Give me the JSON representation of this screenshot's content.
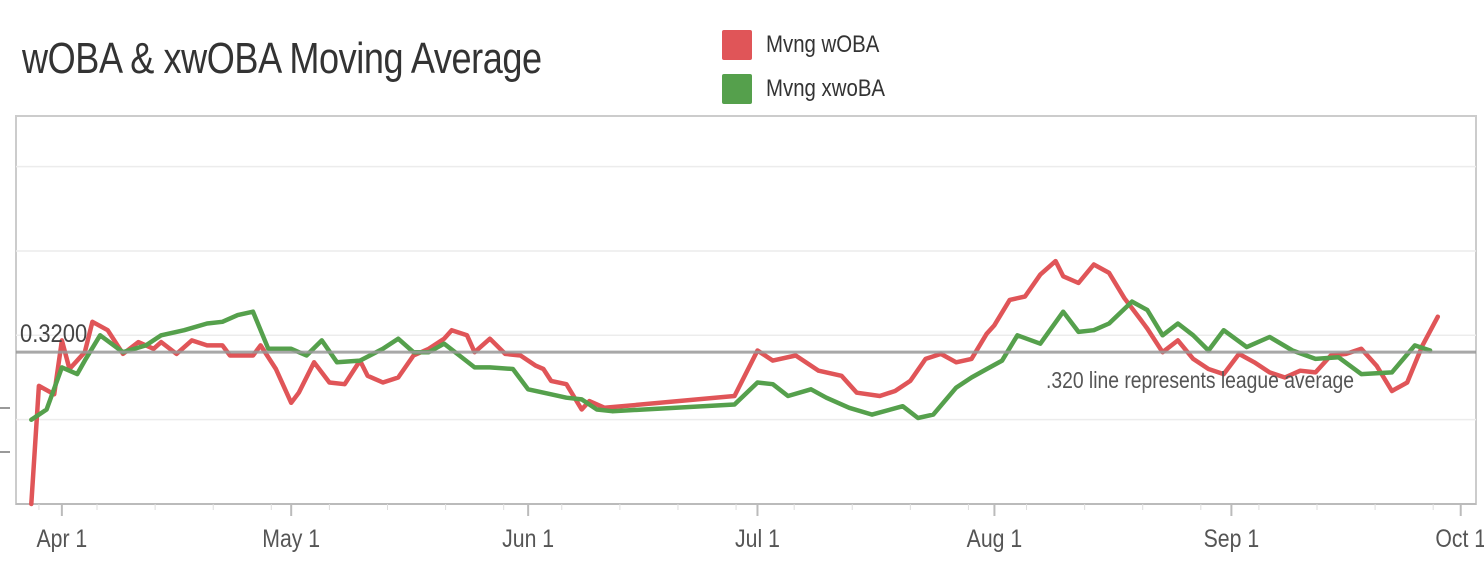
{
  "chart_data": {
    "type": "line",
    "title": "wOBA & xwOBA Moving Average",
    "xlabel": "",
    "ylabel": "",
    "x_range": [
      "2019-03-26",
      "2019-10-03"
    ],
    "ylim": [
      0.23,
      0.46
    ],
    "x_tick_labels": [
      "Apr 1",
      "May 1",
      "Jun 1",
      "Jul 1",
      "Aug 1",
      "Sep 1",
      "Oct 1"
    ],
    "reference_line": {
      "value": 0.32,
      "label": "0.3200",
      "annotation": ".320 line represents league average"
    },
    "grid": true,
    "legend_position": "top",
    "series": [
      {
        "name": "Mvng wOBA",
        "color": "#e05558",
        "points": [
          [
            "2019-03-28",
            0.23
          ],
          [
            "2019-03-29",
            0.3
          ],
          [
            "2019-03-31",
            0.295
          ],
          [
            "2019-04-01",
            0.327
          ],
          [
            "2019-04-02",
            0.31
          ],
          [
            "2019-04-04",
            0.32
          ],
          [
            "2019-04-05",
            0.338
          ],
          [
            "2019-04-07",
            0.333
          ],
          [
            "2019-04-09",
            0.319
          ],
          [
            "2019-04-11",
            0.326
          ],
          [
            "2019-04-13",
            0.322
          ],
          [
            "2019-04-14",
            0.326
          ],
          [
            "2019-04-16",
            0.319
          ],
          [
            "2019-04-18",
            0.327
          ],
          [
            "2019-04-20",
            0.324
          ],
          [
            "2019-04-22",
            0.324
          ],
          [
            "2019-04-23",
            0.318
          ],
          [
            "2019-04-26",
            0.318
          ],
          [
            "2019-04-27",
            0.324
          ],
          [
            "2019-04-29",
            0.31
          ],
          [
            "2019-05-01",
            0.29
          ],
          [
            "2019-05-02",
            0.296
          ],
          [
            "2019-05-04",
            0.314
          ],
          [
            "2019-05-06",
            0.302
          ],
          [
            "2019-05-08",
            0.301
          ],
          [
            "2019-05-10",
            0.315
          ],
          [
            "2019-05-11",
            0.306
          ],
          [
            "2019-05-13",
            0.302
          ],
          [
            "2019-05-15",
            0.305
          ],
          [
            "2019-05-17",
            0.318
          ],
          [
            "2019-05-19",
            0.322
          ],
          [
            "2019-05-21",
            0.328
          ],
          [
            "2019-05-22",
            0.333
          ],
          [
            "2019-05-24",
            0.33
          ],
          [
            "2019-05-25",
            0.32
          ],
          [
            "2019-05-27",
            0.328
          ],
          [
            "2019-05-29",
            0.319
          ],
          [
            "2019-05-31",
            0.318
          ],
          [
            "2019-06-02",
            0.312
          ],
          [
            "2019-06-03",
            0.31
          ],
          [
            "2019-06-04",
            0.303
          ],
          [
            "2019-06-06",
            0.301
          ],
          [
            "2019-06-08",
            0.286
          ],
          [
            "2019-06-09",
            0.291
          ],
          [
            "2019-06-11",
            0.287
          ],
          [
            "2019-06-28",
            0.294
          ],
          [
            "2019-07-01",
            0.321
          ],
          [
            "2019-07-03",
            0.315
          ],
          [
            "2019-07-06",
            0.318
          ],
          [
            "2019-07-09",
            0.309
          ],
          [
            "2019-07-12",
            0.306
          ],
          [
            "2019-07-14",
            0.296
          ],
          [
            "2019-07-17",
            0.294
          ],
          [
            "2019-07-19",
            0.297
          ],
          [
            "2019-07-21",
            0.303
          ],
          [
            "2019-07-23",
            0.316
          ],
          [
            "2019-07-25",
            0.319
          ],
          [
            "2019-07-27",
            0.314
          ],
          [
            "2019-07-29",
            0.316
          ],
          [
            "2019-07-31",
            0.331
          ],
          [
            "2019-08-01",
            0.336
          ],
          [
            "2019-08-03",
            0.351
          ],
          [
            "2019-08-05",
            0.353
          ],
          [
            "2019-08-07",
            0.366
          ],
          [
            "2019-08-09",
            0.374
          ],
          [
            "2019-08-10",
            0.365
          ],
          [
            "2019-08-12",
            0.361
          ],
          [
            "2019-08-14",
            0.372
          ],
          [
            "2019-08-16",
            0.367
          ],
          [
            "2019-08-18",
            0.352
          ],
          [
            "2019-08-20",
            0.34
          ],
          [
            "2019-08-21",
            0.334
          ],
          [
            "2019-08-23",
            0.32
          ],
          [
            "2019-08-25",
            0.327
          ],
          [
            "2019-08-27",
            0.316
          ],
          [
            "2019-08-29",
            0.31
          ],
          [
            "2019-08-31",
            0.307
          ],
          [
            "2019-09-02",
            0.319
          ],
          [
            "2019-09-04",
            0.314
          ],
          [
            "2019-09-06",
            0.308
          ],
          [
            "2019-09-08",
            0.305
          ],
          [
            "2019-09-10",
            0.309
          ],
          [
            "2019-09-12",
            0.308
          ],
          [
            "2019-09-14",
            0.318
          ],
          [
            "2019-09-16",
            0.319
          ],
          [
            "2019-09-18",
            0.322
          ],
          [
            "2019-09-20",
            0.312
          ],
          [
            "2019-09-22",
            0.297
          ],
          [
            "2019-09-24",
            0.302
          ],
          [
            "2019-09-26",
            0.324
          ],
          [
            "2019-09-28",
            0.341
          ]
        ]
      },
      {
        "name": "Mvng xwoBA",
        "color": "#55a04c",
        "points": [
          [
            "2019-03-28",
            0.28
          ],
          [
            "2019-03-30",
            0.286
          ],
          [
            "2019-04-01",
            0.311
          ],
          [
            "2019-04-03",
            0.307
          ],
          [
            "2019-04-04",
            0.315
          ],
          [
            "2019-04-06",
            0.33
          ],
          [
            "2019-04-09",
            0.32
          ],
          [
            "2019-04-12",
            0.324
          ],
          [
            "2019-04-14",
            0.33
          ],
          [
            "2019-04-17",
            0.333
          ],
          [
            "2019-04-20",
            0.337
          ],
          [
            "2019-04-22",
            0.338
          ],
          [
            "2019-04-24",
            0.342
          ],
          [
            "2019-04-26",
            0.344
          ],
          [
            "2019-04-28",
            0.322
          ],
          [
            "2019-05-01",
            0.322
          ],
          [
            "2019-05-03",
            0.318
          ],
          [
            "2019-05-05",
            0.327
          ],
          [
            "2019-05-07",
            0.314
          ],
          [
            "2019-05-10",
            0.315
          ],
          [
            "2019-05-13",
            0.322
          ],
          [
            "2019-05-15",
            0.328
          ],
          [
            "2019-05-17",
            0.32
          ],
          [
            "2019-05-19",
            0.32
          ],
          [
            "2019-05-21",
            0.325
          ],
          [
            "2019-05-23",
            0.318
          ],
          [
            "2019-05-25",
            0.311
          ],
          [
            "2019-05-27",
            0.311
          ],
          [
            "2019-05-30",
            0.31
          ],
          [
            "2019-06-01",
            0.298
          ],
          [
            "2019-06-04",
            0.295
          ],
          [
            "2019-06-06",
            0.293
          ],
          [
            "2019-06-08",
            0.292
          ],
          [
            "2019-06-10",
            0.286
          ],
          [
            "2019-06-12",
            0.285
          ],
          [
            "2019-06-28",
            0.289
          ],
          [
            "2019-07-01",
            0.302
          ],
          [
            "2019-07-03",
            0.301
          ],
          [
            "2019-07-05",
            0.294
          ],
          [
            "2019-07-08",
            0.298
          ],
          [
            "2019-07-10",
            0.293
          ],
          [
            "2019-07-13",
            0.287
          ],
          [
            "2019-07-16",
            0.283
          ],
          [
            "2019-07-20",
            0.288
          ],
          [
            "2019-07-22",
            0.281
          ],
          [
            "2019-07-24",
            0.283
          ],
          [
            "2019-07-27",
            0.299
          ],
          [
            "2019-07-29",
            0.305
          ],
          [
            "2019-07-31",
            0.31
          ],
          [
            "2019-08-02",
            0.315
          ],
          [
            "2019-08-04",
            0.33
          ],
          [
            "2019-08-07",
            0.325
          ],
          [
            "2019-08-10",
            0.344
          ],
          [
            "2019-08-12",
            0.332
          ],
          [
            "2019-08-14",
            0.333
          ],
          [
            "2019-08-16",
            0.337
          ],
          [
            "2019-08-19",
            0.35
          ],
          [
            "2019-08-21",
            0.345
          ],
          [
            "2019-08-23",
            0.33
          ],
          [
            "2019-08-25",
            0.337
          ],
          [
            "2019-08-27",
            0.33
          ],
          [
            "2019-08-29",
            0.321
          ],
          [
            "2019-08-31",
            0.333
          ],
          [
            "2019-09-03",
            0.323
          ],
          [
            "2019-09-06",
            0.329
          ],
          [
            "2019-09-09",
            0.321
          ],
          [
            "2019-09-12",
            0.316
          ],
          [
            "2019-09-15",
            0.317
          ],
          [
            "2019-09-18",
            0.307
          ],
          [
            "2019-09-22",
            0.308
          ],
          [
            "2019-09-25",
            0.324
          ],
          [
            "2019-09-27",
            0.321
          ]
        ]
      }
    ]
  }
}
